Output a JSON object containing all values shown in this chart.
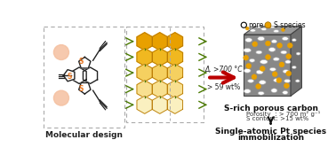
{
  "bg_color": "#ffffff",
  "box_color": "#aaaaaa",
  "molecule_S_color": "#E87722",
  "molecule_body_color": "#222222",
  "alkyne_highlight_color": "#F5C0A0",
  "polymer_dark_color": "#E8A000",
  "polymer_mid_color": "#F0B820",
  "polymer_light_color": "#F5D060",
  "polymer_lighter_color": "#F8E090",
  "polymer_linker_color": "#4A7A00",
  "arrow_color": "#BB0000",
  "arrow_condition_text": "Δ, >700 °C",
  "arrow_yield_text": "> 59 wt%",
  "cube_front_color": "#888888",
  "cube_top_color": "#999999",
  "cube_right_color": "#707070",
  "cube_edge_color": "#444444",
  "pore_color": "#ffffff",
  "pore_edge_color": "#aaaaaa",
  "S_dot_color": "#E8A000",
  "S_dot_edge_color": "#996600",
  "legend_pore_label": "pore",
  "legend_S_label": "S species",
  "label_molecular": "Molecular design",
  "label_carbon": "S-rich porous carbon",
  "label_porosity": "Porosity  : > 700 m² g⁻¹",
  "label_S_content": "S content: >15 wt%",
  "label_single": "Single-atomic Pt species",
  "label_immob": "immobilization",
  "font_bold_size": 6.5,
  "font_small_size": 5.0
}
